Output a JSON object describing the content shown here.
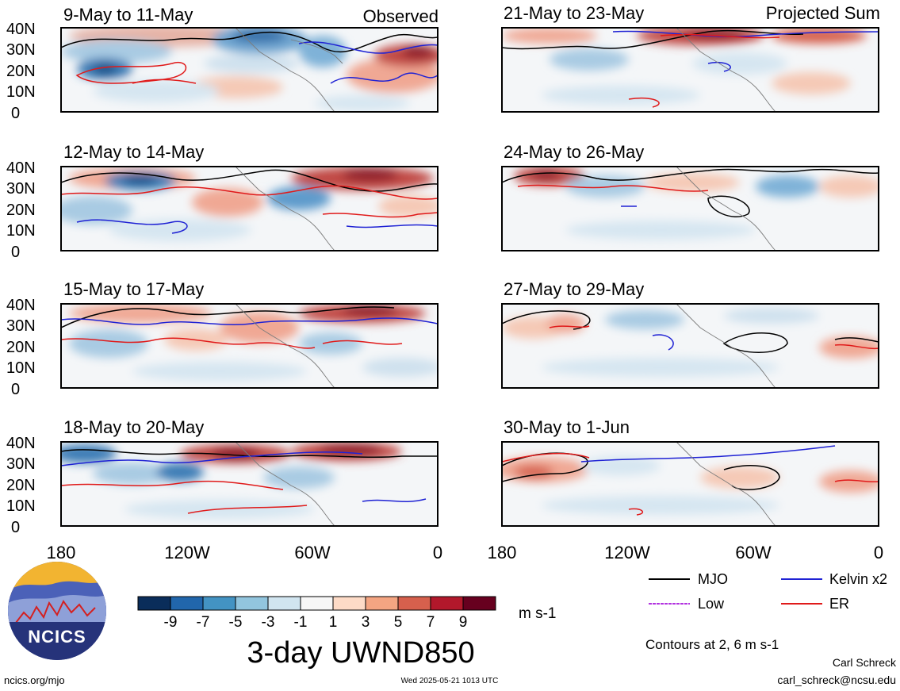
{
  "panels": [
    {
      "title": "9-May to 11-May",
      "corner_label": "Observed"
    },
    {
      "title": "21-May to 23-May",
      "corner_label": "Projected Sum"
    },
    {
      "title": "12-May to 14-May"
    },
    {
      "title": "24-May to 26-May"
    },
    {
      "title": "15-May to 17-May"
    },
    {
      "title": "27-May to 29-May"
    },
    {
      "title": "18-May to 20-May"
    },
    {
      "title": "30-May to 1-Jun"
    }
  ],
  "lat_labels": [
    "40N",
    "30N",
    "20N",
    "10N",
    "0"
  ],
  "lon_labels": [
    "180",
    "120W",
    "60W",
    "0"
  ],
  "colorbar": {
    "colors": [
      "#0a2d5a",
      "#2166ac",
      "#4393c3",
      "#92c5de",
      "#d1e5f0",
      "#f7f7f7",
      "#fddbc7",
      "#f4a582",
      "#d6604d",
      "#b2182b",
      "#67001f"
    ],
    "tick_labels": [
      "-9",
      "-7",
      "-5",
      "-3",
      "-1",
      "1",
      "3",
      "5",
      "7",
      "9"
    ],
    "units": "m s-1"
  },
  "field_title": "3-day UWND850",
  "legend": {
    "items": [
      {
        "label": "MJO",
        "color": "#000000"
      },
      {
        "label": "Kelvin x2",
        "color": "#1f22d4"
      },
      {
        "label": "Low",
        "color": "#b233e0"
      },
      {
        "label": "ER",
        "color": "#e01a1a"
      }
    ],
    "contour_note": "Contours at 2, 6 m s-1"
  },
  "footer": {
    "left": "ncics.org/mjo",
    "center": "Wed 2025-05-21 1013 UTC",
    "author": "Carl Schreck",
    "email": "carl_schreck@ncsu.edu"
  },
  "logo": {
    "text": "NCICS"
  }
}
